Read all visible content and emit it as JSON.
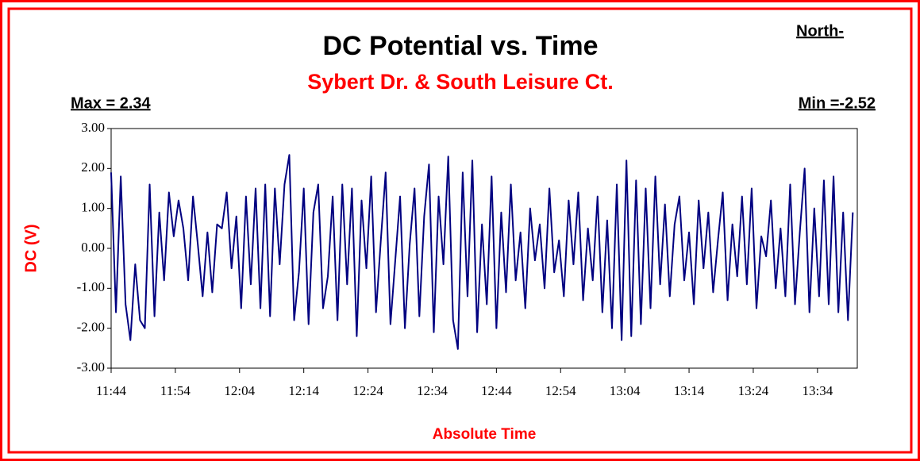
{
  "chart_data": {
    "type": "line",
    "title": "DC Potential vs. Time",
    "subtitle": "Sybert Dr. & South Leisure Ct.",
    "annotations": [
      "Max = 2.34",
      "Min =-2.52",
      "North-"
    ],
    "y_label": "DC (V)",
    "x_label": "Absolute Time",
    "color": "#000080",
    "ylim": [
      -3,
      3
    ],
    "yticks": [
      {
        "value": 3,
        "label": "3.00"
      },
      {
        "value": 2,
        "label": "2.00"
      },
      {
        "value": 1,
        "label": "1.00"
      },
      {
        "value": 0,
        "label": "0.00"
      },
      {
        "value": -1,
        "label": "-1.00"
      },
      {
        "value": -2,
        "label": "-2.00"
      },
      {
        "value": -3,
        "label": "-3.00"
      }
    ],
    "xlim": [
      704,
      820.2
    ],
    "xticks": [
      {
        "value": 704,
        "label": "11:44"
      },
      {
        "value": 714,
        "label": "11:54"
      },
      {
        "value": 724,
        "label": "12:04"
      },
      {
        "value": 734,
        "label": "12:14"
      },
      {
        "value": 744,
        "label": "12:24"
      },
      {
        "value": 754,
        "label": "12:34"
      },
      {
        "value": 764,
        "label": "12:44"
      },
      {
        "value": 774,
        "label": "12:54"
      },
      {
        "value": 784,
        "label": "13:04"
      },
      {
        "value": 794,
        "label": "13:14"
      },
      {
        "value": 804,
        "label": "13:24"
      },
      {
        "value": 814,
        "label": "13:34"
      }
    ],
    "x": [
      704,
      704.75,
      705.5,
      706.25,
      707,
      707.75,
      708.5,
      709.25,
      710,
      710.75,
      711.5,
      712.25,
      713,
      713.75,
      714.5,
      715.25,
      716,
      716.75,
      717.5,
      718.25,
      719,
      719.75,
      720.5,
      721.25,
      722,
      722.75,
      723.5,
      724.25,
      725,
      725.75,
      726.5,
      727.25,
      728,
      728.75,
      729.5,
      730.25,
      731,
      731.75,
      732.5,
      733.25,
      734,
      734.75,
      735.5,
      736.25,
      737,
      737.75,
      738.5,
      739.25,
      740,
      740.75,
      741.5,
      742.25,
      743,
      743.75,
      744.5,
      745.25,
      746,
      746.75,
      747.5,
      748.25,
      749,
      749.75,
      750.5,
      751.25,
      752,
      752.75,
      753.5,
      754.25,
      755,
      755.75,
      756.5,
      757.25,
      758,
      758.75,
      759.5,
      760.25,
      761,
      761.75,
      762.5,
      763.25,
      764,
      764.75,
      765.5,
      766.25,
      767,
      767.75,
      768.5,
      769.25,
      770,
      770.75,
      771.5,
      772.25,
      773,
      773.75,
      774.5,
      775.25,
      776,
      776.75,
      777.5,
      778.25,
      779,
      779.75,
      780.5,
      781.25,
      782,
      782.75,
      783.5,
      784.25,
      785,
      785.75,
      786.5,
      787.25,
      788,
      788.75,
      789.5,
      790.25,
      791,
      791.75,
      792.5,
      793.25,
      794,
      794.75,
      795.5,
      796.25,
      797,
      797.75,
      798.5,
      799.25,
      800,
      800.75,
      801.5,
      802.25,
      803,
      803.75,
      804.5,
      805.25,
      806,
      806.75,
      807.5,
      808.25,
      809,
      809.75,
      810.5,
      811.25,
      812,
      812.75,
      813.5,
      814.25,
      815,
      815.75,
      816.5,
      817.25,
      818,
      818.75,
      819.5
    ],
    "values": [
      1.9,
      -1.6,
      1.8,
      -1.4,
      -2.3,
      -0.4,
      -1.8,
      -2.0,
      1.6,
      -1.7,
      0.9,
      -0.8,
      1.4,
      0.3,
      1.2,
      0.5,
      -0.8,
      1.3,
      0.1,
      -1.2,
      0.4,
      -1.1,
      0.6,
      0.5,
      1.4,
      -0.5,
      0.8,
      -1.5,
      1.3,
      -0.9,
      1.5,
      -1.5,
      1.6,
      -1.7,
      1.5,
      -0.4,
      1.6,
      2.34,
      -1.8,
      -0.6,
      1.5,
      -1.9,
      0.9,
      1.6,
      -1.5,
      -0.7,
      1.3,
      -1.8,
      1.6,
      -0.9,
      1.5,
      -2.2,
      1.2,
      -0.5,
      1.8,
      -1.6,
      0.2,
      1.9,
      -1.9,
      -0.3,
      1.3,
      -2.0,
      0.1,
      1.5,
      -1.7,
      0.8,
      2.1,
      -2.1,
      1.3,
      -0.4,
      2.3,
      -1.8,
      -2.52,
      1.9,
      -1.2,
      2.2,
      -2.1,
      0.6,
      -1.4,
      1.8,
      -2.0,
      0.9,
      -1.1,
      1.6,
      -0.8,
      0.4,
      -1.5,
      1.0,
      -0.3,
      0.6,
      -1.0,
      1.5,
      -0.6,
      0.2,
      -1.2,
      1.2,
      -0.4,
      1.4,
      -1.3,
      0.5,
      -0.8,
      1.3,
      -1.6,
      0.7,
      -2.0,
      1.6,
      -2.3,
      2.2,
      -2.2,
      1.7,
      -1.9,
      1.5,
      -1.5,
      1.8,
      -0.9,
      1.1,
      -1.2,
      0.6,
      1.3,
      -0.8,
      0.4,
      -1.4,
      1.2,
      -0.5,
      0.9,
      -1.1,
      0.2,
      1.4,
      -1.3,
      0.6,
      -0.7,
      1.3,
      -0.9,
      1.5,
      -1.5,
      0.3,
      -0.2,
      1.2,
      -1.0,
      0.5,
      -1.2,
      1.6,
      -1.4,
      0.4,
      2.0,
      -1.6,
      1.0,
      -1.2,
      1.7,
      -1.4,
      1.8,
      -1.6,
      0.9,
      -1.8,
      0.9
    ]
  }
}
